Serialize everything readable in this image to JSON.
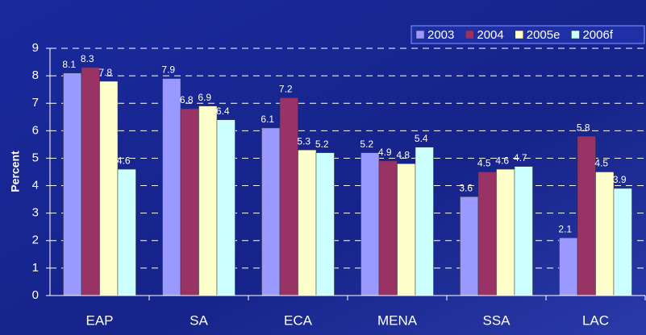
{
  "chart_data": {
    "type": "bar",
    "y_label": "Percent",
    "categories": [
      "EAP",
      "SA",
      "ECA",
      "MENA",
      "SSA",
      "LAC"
    ],
    "series": [
      {
        "name": "2003",
        "color": "#9999ff",
        "values": [
          8.1,
          7.9,
          6.1,
          5.2,
          3.6,
          2.1
        ]
      },
      {
        "name": "2004",
        "color": "#993366",
        "values": [
          8.3,
          6.8,
          7.2,
          4.9,
          4.5,
          5.8
        ]
      },
      {
        "name": "2005e",
        "color": "#ffffcc",
        "values": [
          7.8,
          6.9,
          5.3,
          4.8,
          4.6,
          4.5
        ]
      },
      {
        "name": "2006f",
        "color": "#ccffff",
        "values": [
          4.6,
          6.4,
          5.2,
          5.4,
          4.7,
          3.9
        ]
      }
    ],
    "ylim": [
      0,
      9
    ],
    "yticks": [
      0,
      1,
      2,
      3,
      4,
      5,
      6,
      7,
      8,
      9
    ],
    "grid": true,
    "legend": "top-right"
  }
}
